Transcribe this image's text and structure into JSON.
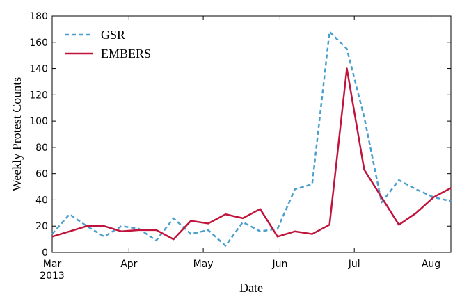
{
  "chart_data": {
    "type": "line",
    "xlabel": "Date",
    "ylabel": "Weekly Protest Counts",
    "x": [
      0,
      7,
      14,
      21,
      28,
      35,
      42,
      49,
      56,
      63,
      70,
      77,
      84,
      91,
      98,
      105,
      112,
      119,
      126,
      133,
      140,
      147,
      154,
      161
    ],
    "xlim": [
      0,
      161
    ],
    "xticks": [
      {
        "value": 0,
        "label": "Mar\n2013"
      },
      {
        "value": 31,
        "label": "Apr"
      },
      {
        "value": 61,
        "label": "May"
      },
      {
        "value": 92,
        "label": "Jun"
      },
      {
        "value": 122,
        "label": "Jul"
      },
      {
        "value": 153,
        "label": "Aug"
      }
    ],
    "ylim": [
      0,
      180
    ],
    "yticks": [
      0,
      20,
      40,
      60,
      80,
      100,
      120,
      140,
      160,
      180
    ],
    "legend": "upper left",
    "series": [
      {
        "name": "GSR",
        "color": "#4a9fcf",
        "dash": true,
        "values": [
          14,
          29,
          20,
          12,
          20,
          18,
          9,
          26,
          14,
          17,
          5,
          23,
          16,
          18,
          48,
          52,
          168,
          155,
          103,
          38,
          55,
          48,
          42,
          39
        ]
      },
      {
        "name": "EMBERS",
        "color": "#c0143c",
        "dash": false,
        "values": [
          12,
          16,
          20,
          20,
          16,
          17,
          17,
          10,
          24,
          22,
          29,
          26,
          33,
          12,
          16,
          14,
          21,
          140,
          63,
          42,
          21,
          30,
          42,
          49
        ]
      }
    ]
  }
}
